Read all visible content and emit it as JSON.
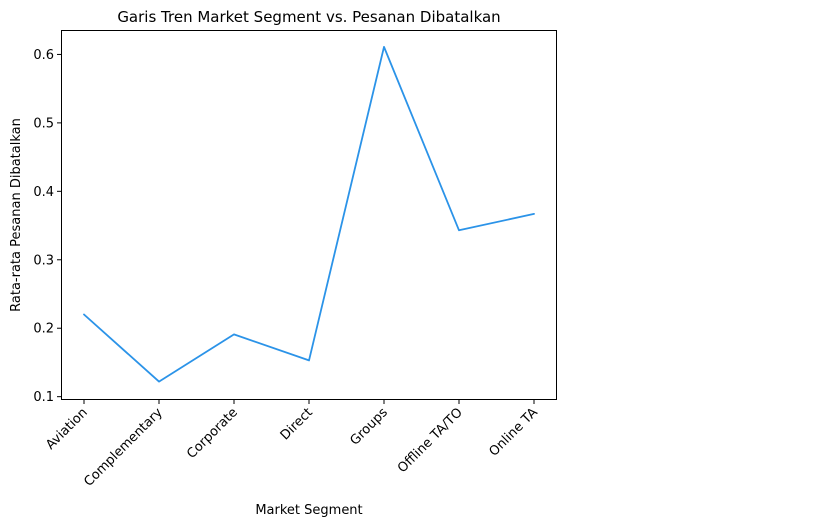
{
  "chart_data": {
    "type": "line",
    "title": "Garis Tren Market Segment vs. Pesanan Dibatalkan",
    "xlabel": "Market Segment",
    "ylabel": "Rata-rata Pesanan Dibatalkan",
    "categories": [
      "Aviation",
      "Complementary",
      "Corporate",
      "Direct",
      "Groups",
      "Offline TA/TO",
      "Online TA"
    ],
    "series": [
      {
        "name": "",
        "values": [
          0.22,
          0.122,
          0.191,
          0.153,
          0.611,
          0.343,
          0.367
        ],
        "color": "#2b93e8"
      }
    ],
    "yticks": [
      0.1,
      0.2,
      0.3,
      0.4,
      0.5,
      0.6
    ],
    "ylim": [
      0.0966,
      0.6357
    ],
    "grid": false,
    "legend": "none"
  }
}
